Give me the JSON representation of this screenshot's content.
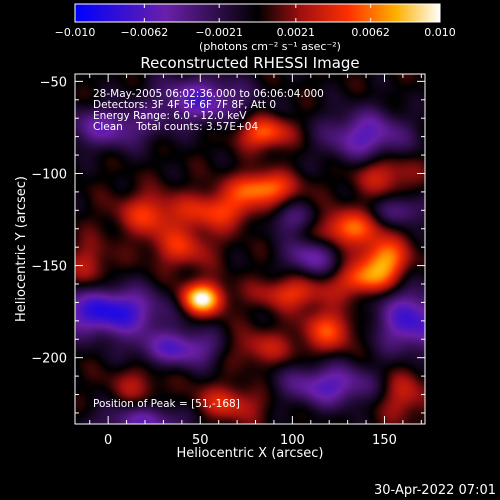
{
  "chart_data": {
    "type": "heatmap",
    "title": "Reconstructed RHESSI Image",
    "xlabel": "Heliocentric X (arcsec)",
    "ylabel": "Heliocentric Y (arcsec)",
    "xlim": [
      -18,
      172
    ],
    "ylim": [
      -236,
      -46
    ],
    "x_ticks": [
      0,
      50,
      100,
      150
    ],
    "y_ticks": [
      -50,
      -100,
      -150,
      -200
    ],
    "colorbar": {
      "range": [
        -0.01,
        0.01
      ],
      "tick_values": [
        -0.01,
        -0.0062,
        -0.0021,
        0.0021,
        0.0062,
        0.01
      ],
      "tick_labels": [
        "−0.010",
        "−0.0062",
        "−0.0021",
        "0.0021",
        "0.0062",
        "0.010"
      ],
      "unit_label": "(photons cm⁻² s⁻¹ asec⁻²)",
      "stops": [
        {
          "pos": 0.0,
          "color": "#0000ff"
        },
        {
          "pos": 0.25,
          "color": "#6a1fa8"
        },
        {
          "pos": 0.5,
          "color": "#000000"
        },
        {
          "pos": 0.62,
          "color": "#a01010"
        },
        {
          "pos": 0.75,
          "color": "#ff3000"
        },
        {
          "pos": 0.88,
          "color": "#ffb000"
        },
        {
          "pos": 1.0,
          "color": "#ffffff"
        }
      ]
    },
    "annotations": [
      "28-May-2005 06:02:36.000 to 06:06:04.000",
      "Detectors: 3F 4F 5F 6F 7F 8F, Att 0",
      "Energy Range: 6.0 - 12.0 keV",
      "Clean    Total counts: 3.57E+04"
    ],
    "peak_label": "Position of Peak = [51,-168]",
    "sources": [
      {
        "x": 51,
        "y": -168,
        "v": 0.01,
        "sx": 8,
        "sy": 6
      },
      {
        "x": 84,
        "y": -108,
        "v": 0.0068,
        "sx": 12,
        "sy": 6
      },
      {
        "x": 60,
        "y": -120,
        "v": 0.005,
        "sx": 14,
        "sy": 7
      },
      {
        "x": 22,
        "y": -122,
        "v": 0.0045,
        "sx": 12,
        "sy": 8
      },
      {
        "x": 130,
        "y": -130,
        "v": 0.006,
        "sx": 12,
        "sy": 7
      },
      {
        "x": 150,
        "y": -147,
        "v": 0.0072,
        "sx": 9,
        "sy": 8
      },
      {
        "x": 138,
        "y": -158,
        "v": 0.0055,
        "sx": 10,
        "sy": 6
      },
      {
        "x": 85,
        "y": -78,
        "v": 0.006,
        "sx": 10,
        "sy": 6
      },
      {
        "x": 40,
        "y": -140,
        "v": 0.004,
        "sx": 12,
        "sy": 8
      },
      {
        "x": 100,
        "y": -165,
        "v": 0.0045,
        "sx": 14,
        "sy": 6
      },
      {
        "x": 120,
        "y": -185,
        "v": 0.005,
        "sx": 10,
        "sy": 8
      },
      {
        "x": 80,
        "y": -195,
        "v": 0.0035,
        "sx": 15,
        "sy": 7
      },
      {
        "x": 65,
        "y": -225,
        "v": 0.004,
        "sx": 14,
        "sy": 7
      },
      {
        "x": 150,
        "y": -100,
        "v": 0.004,
        "sx": 12,
        "sy": 8
      },
      {
        "x": -10,
        "y": -150,
        "v": 0.003,
        "sx": 8,
        "sy": 10
      },
      {
        "x": 160,
        "y": -220,
        "v": 0.0035,
        "sx": 10,
        "sy": 10
      },
      {
        "x": 15,
        "y": -215,
        "v": 0.0025,
        "sx": 10,
        "sy": 8
      },
      {
        "x": 0,
        "y": -75,
        "v": -0.005,
        "sx": 18,
        "sy": 8
      },
      {
        "x": 50,
        "y": -60,
        "v": -0.006,
        "sx": 18,
        "sy": 9
      },
      {
        "x": 140,
        "y": -80,
        "v": -0.006,
        "sx": 16,
        "sy": 10
      },
      {
        "x": 0,
        "y": -175,
        "v": -0.0085,
        "sx": 20,
        "sy": 9
      },
      {
        "x": 165,
        "y": -180,
        "v": -0.007,
        "sx": 14,
        "sy": 12
      },
      {
        "x": 110,
        "y": -145,
        "v": -0.005,
        "sx": 10,
        "sy": 7
      },
      {
        "x": 40,
        "y": -195,
        "v": -0.006,
        "sx": 18,
        "sy": 7
      },
      {
        "x": 120,
        "y": -215,
        "v": -0.006,
        "sx": 18,
        "sy": 8
      },
      {
        "x": 20,
        "y": -235,
        "v": -0.005,
        "sx": 18,
        "sy": 7
      },
      {
        "x": 100,
        "y": -125,
        "v": -0.0035,
        "sx": 10,
        "sy": 6
      },
      {
        "x": 160,
        "y": -120,
        "v": -0.004,
        "sx": 10,
        "sy": 6
      }
    ]
  },
  "footer": {
    "timestamp": "30-Apr-2022 07:01"
  }
}
